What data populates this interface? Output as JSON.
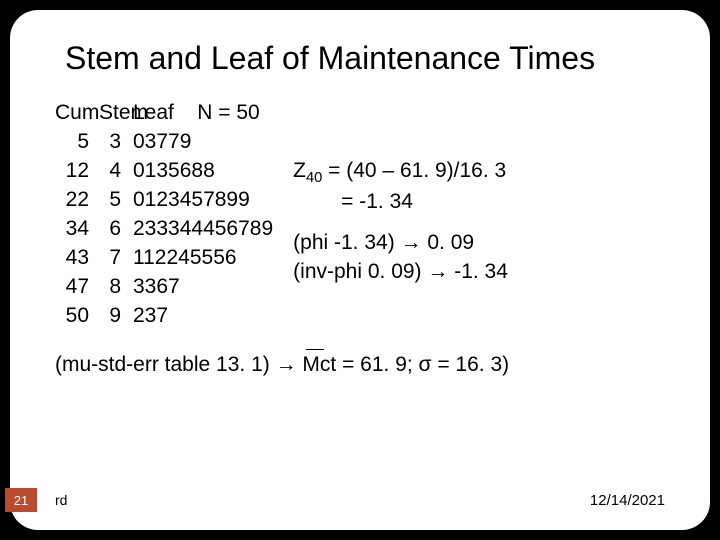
{
  "title": "Stem and Leaf of Maintenance Times",
  "header": {
    "cum": "Cum",
    "stem": "Stem",
    "leaf": "Leaf",
    "n_label": "N = 50"
  },
  "rows": [
    {
      "cum": "5",
      "stem": "3",
      "leaf": "03779"
    },
    {
      "cum": "12",
      "stem": "4",
      "leaf": "0135688"
    },
    {
      "cum": "22",
      "stem": "5",
      "leaf": "0123457899"
    },
    {
      "cum": "34",
      "stem": "6",
      "leaf": "233344456789"
    },
    {
      "cum": "43",
      "stem": "7",
      "leaf": "112245556"
    },
    {
      "cum": "47",
      "stem": "8",
      "leaf": "3367"
    },
    {
      "cum": "50",
      "stem": "9",
      "leaf": "237"
    }
  ],
  "z": {
    "label_prefix": "Z",
    "label_sub": "40",
    "line1_rest": " = (40 – 61. 9)/16. 3",
    "line2": "= -1. 34"
  },
  "phi1": "(phi -1. 34) → 0. 09",
  "phi2": "(inv-phi 0. 09) → -1. 34",
  "note_prefix": "(mu-std-err table 13. 1) → ",
  "note_mct": "Mct",
  "note_rest": " = 61. 9; σ = 16. 3)",
  "page": "21",
  "rd": "rd",
  "date": "12/14/2021"
}
